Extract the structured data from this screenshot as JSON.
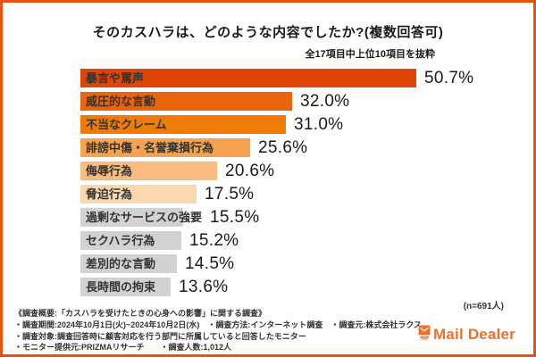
{
  "header": {
    "title": "そのカスハラは、どのような内容でしたか?(複数回答可)",
    "subtitle": "全17項目中上位10項目を抜粋"
  },
  "chart_data": {
    "type": "bar",
    "orientation": "horizontal",
    "title": "そのカスハラは、どのような内容でしたか?(複数回答可)",
    "subtitle": "全17項目中上位10項目を抜粋",
    "unit": "%",
    "xlim": [
      0,
      55
    ],
    "grid": false,
    "legend": false,
    "categories": [
      "暴言や罵声",
      "威圧的な言動",
      "不当なクレーム",
      "誹謗中傷・名誉棄損行為",
      "侮辱行為",
      "脅迫行為",
      "過剰なサービスの強要",
      "セクハラ行為",
      "差別的な言動",
      "長時間の拘束"
    ],
    "values": [
      50.7,
      32.0,
      31.0,
      25.6,
      20.6,
      17.5,
      15.5,
      15.2,
      14.5,
      13.6
    ],
    "value_labels": [
      "50.7%",
      "32.0%",
      "31.0%",
      "25.6%",
      "20.6%",
      "17.5%",
      "15.5%",
      "15.2%",
      "14.5%",
      "13.6%"
    ],
    "bar_colors": [
      "#DF4505",
      "#EA6409",
      "#F07C07",
      "#F5A34E",
      "#F8BC80",
      "#FAD7AE",
      "#D2D2D2",
      "#D2D2D2",
      "#D2D2D2",
      "#D2D2D2"
    ],
    "sample_note": "(n=691人)"
  },
  "footer": {
    "lines": [
      "《調査概要:「カスハラを受けたときの心身への影響」に関する調査》",
      "・調査期間:2024年10月1日(火)~2024年10月2日(水)　・調査方法:インターネット調査　・調査元:株式会社ラクス",
      "・調査対象:調査回答時に顧客対応を行う部門に所属していると回答したモニター",
      "・モニター提供元:PRIZMAリサーチ　　・調査人数:1,012人"
    ]
  },
  "logo": {
    "text": "Mail Dealer",
    "color": "#F0702A"
  },
  "colors": {
    "border": "#EE500D",
    "bar_label_text": "#333333",
    "value_text": "#1A1A1A",
    "gray_bar": "#D2D2D2"
  }
}
